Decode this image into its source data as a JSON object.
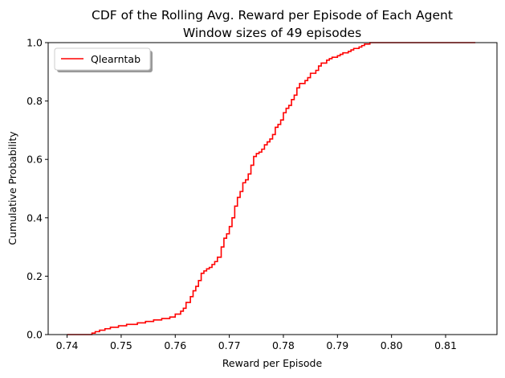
{
  "chart_data": {
    "type": "line",
    "title": "CDF of the Rolling Avg. Reward per Episode of Each Agent",
    "subtitle": "Window sizes of 49 episodes",
    "xlabel": "Reward per Episode",
    "ylabel": "Cumulative Probability",
    "xlim": [
      0.7365,
      0.8195
    ],
    "ylim": [
      0.0,
      1.0
    ],
    "xticks": [
      0.74,
      0.75,
      0.76,
      0.77,
      0.78,
      0.79,
      0.8,
      0.81
    ],
    "xtick_labels": [
      "0.74",
      "0.75",
      "0.76",
      "0.77",
      "0.78",
      "0.79",
      "0.80",
      "0.81"
    ],
    "yticks": [
      0.0,
      0.2,
      0.4,
      0.6,
      0.8,
      1.0
    ],
    "ytick_labels": [
      "0.0",
      "0.2",
      "0.4",
      "0.6",
      "0.8",
      "1.0"
    ],
    "grid": false,
    "legend_position": "top-left",
    "series": [
      {
        "name": "Qlearntab",
        "color": "#ff0000",
        "step": "post",
        "x": [
          0.74,
          0.7446,
          0.7452,
          0.746,
          0.747,
          0.748,
          0.7495,
          0.751,
          0.753,
          0.7545,
          0.756,
          0.7575,
          0.759,
          0.76,
          0.761,
          0.7615,
          0.762,
          0.7628,
          0.7633,
          0.7638,
          0.7643,
          0.7648,
          0.7653,
          0.7658,
          0.7663,
          0.7668,
          0.7673,
          0.7678,
          0.7685,
          0.769,
          0.7695,
          0.77,
          0.7705,
          0.771,
          0.7715,
          0.772,
          0.7725,
          0.773,
          0.7735,
          0.774,
          0.7745,
          0.775,
          0.7755,
          0.776,
          0.7765,
          0.777,
          0.7775,
          0.778,
          0.7785,
          0.779,
          0.7795,
          0.78,
          0.7805,
          0.781,
          0.7815,
          0.782,
          0.7825,
          0.783,
          0.784,
          0.7845,
          0.785,
          0.786,
          0.7865,
          0.787,
          0.788,
          0.7885,
          0.789,
          0.79,
          0.7905,
          0.791,
          0.792,
          0.7925,
          0.793,
          0.794,
          0.7945,
          0.795,
          0.796,
          0.7965,
          0.797,
          0.798,
          0.7985,
          0.799,
          0.8,
          0.8005,
          0.801,
          0.802,
          0.803,
          0.804,
          0.805,
          0.806,
          0.807,
          0.808,
          0.809,
          0.81,
          0.812,
          0.814,
          0.815,
          0.8155
        ],
        "y": [
          0.0,
          0.005,
          0.01,
          0.015,
          0.02,
          0.025,
          0.03,
          0.035,
          0.04,
          0.045,
          0.05,
          0.055,
          0.06,
          0.07,
          0.08,
          0.09,
          0.11,
          0.13,
          0.15,
          0.165,
          0.185,
          0.21,
          0.218,
          0.225,
          0.23,
          0.24,
          0.25,
          0.265,
          0.3,
          0.33,
          0.345,
          0.37,
          0.4,
          0.44,
          0.47,
          0.49,
          0.52,
          0.53,
          0.55,
          0.58,
          0.61,
          0.62,
          0.625,
          0.635,
          0.65,
          0.66,
          0.67,
          0.685,
          0.71,
          0.72,
          0.735,
          0.76,
          0.775,
          0.785,
          0.805,
          0.82,
          0.845,
          0.86,
          0.87,
          0.88,
          0.895,
          0.905,
          0.92,
          0.93,
          0.94,
          0.945,
          0.95,
          0.955,
          0.96,
          0.965,
          0.97,
          0.975,
          0.98,
          0.985,
          0.99,
          0.995,
          1.0,
          1.0,
          1.0,
          1.0,
          1.0,
          1.0,
          1.0,
          1.0,
          1.0,
          1.0,
          1.0,
          1.0,
          1.0,
          1.0,
          1.0,
          1.0,
          1.0,
          1.0,
          1.0,
          1.0,
          1.0,
          1.0
        ]
      }
    ]
  }
}
